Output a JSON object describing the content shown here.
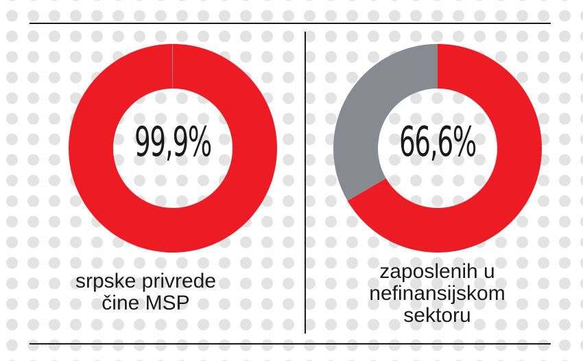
{
  "colors": {
    "primary": "#ed1c24",
    "secondary": "#878b91"
  },
  "chart_data": [
    {
      "type": "pie",
      "donut": true,
      "center_label": "99,9%",
      "slices": [
        {
          "value": 99.9,
          "color": "#ed1c24"
        },
        {
          "value": 0.1,
          "color": "#878b91"
        }
      ],
      "caption_lines": [
        "srpske privrede",
        "čine MSP"
      ]
    },
    {
      "type": "pie",
      "donut": true,
      "center_label": "66,6%",
      "slices": [
        {
          "value": 66.6,
          "color": "#ed1c24"
        },
        {
          "value": 33.4,
          "color": "#878b91"
        }
      ],
      "caption_lines": [
        "zaposlenih u",
        "nefinansijskom",
        "sektoru"
      ]
    }
  ]
}
